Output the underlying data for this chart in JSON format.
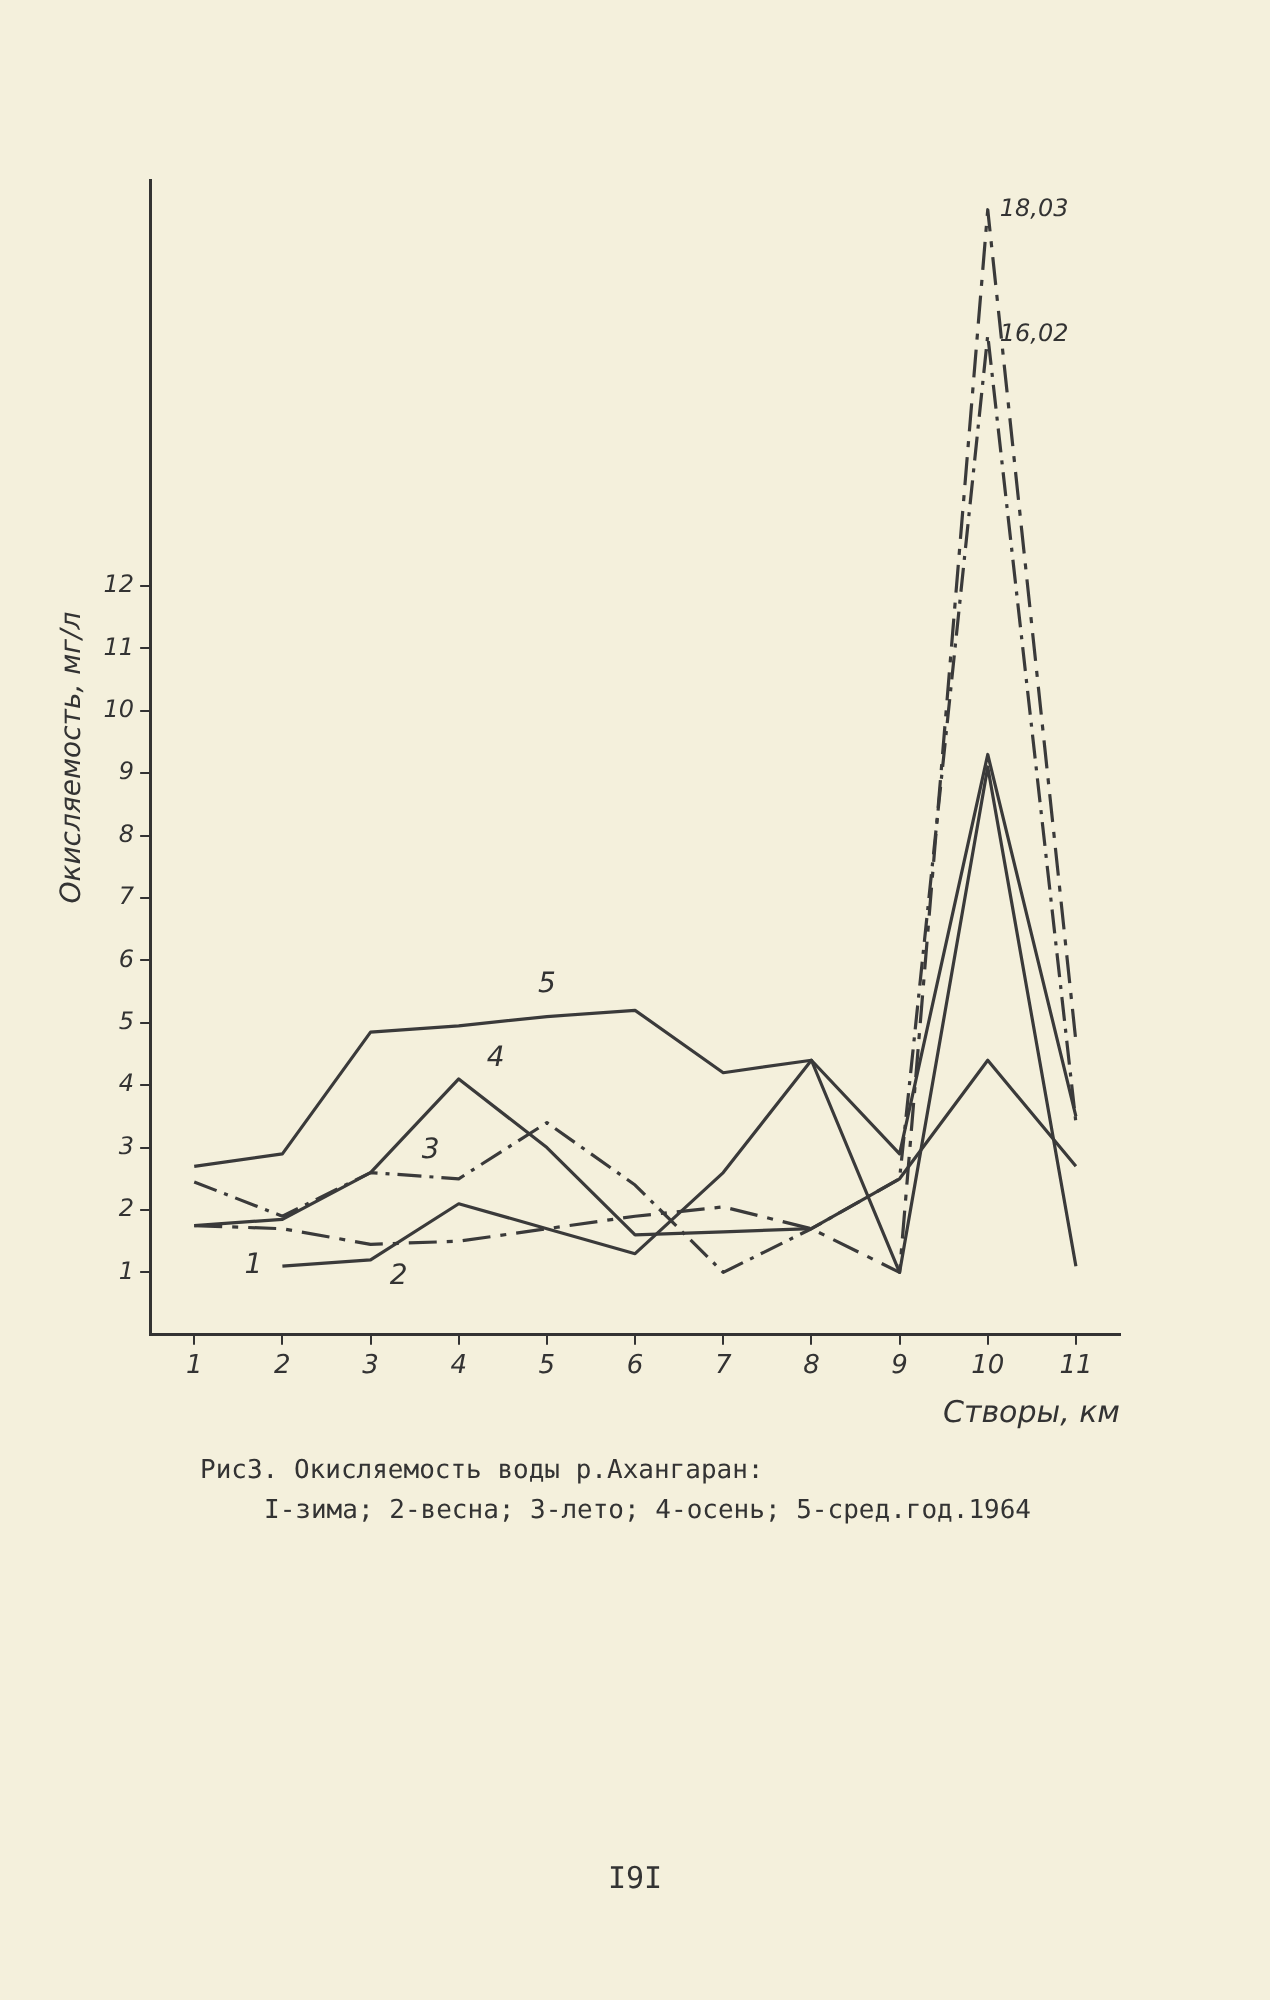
{
  "chart_data": {
    "type": "line",
    "title": "Рис3. Окисляемость воды р.Ахангаран:",
    "subtitle": "I-зима; 2-весна; 3-лето; 4-осень; 5-сред.год.1964",
    "xlabel": "Створы, км",
    "ylabel": "Окисляемость, мг/л",
    "categories": [
      "1",
      "2",
      "3",
      "4",
      "5",
      "6",
      "7",
      "8",
      "9",
      "10",
      "11"
    ],
    "ylim": [
      0,
      18.5
    ],
    "yticks": [
      1,
      2,
      3,
      4,
      5,
      6,
      7,
      8,
      9,
      10,
      11,
      12
    ],
    "series": [
      {
        "name": "1",
        "color": "#3a3a3a",
        "line_style": "solid",
        "values": [
          null,
          1.1,
          1.2,
          2.1,
          1.7,
          1.3,
          2.6,
          4.4,
          1.0,
          9.1,
          1.1
        ]
      },
      {
        "name": "2",
        "color": "#3a3a3a",
        "line_style": "dashed",
        "values": [
          1.75,
          1.7,
          1.45,
          1.5,
          1.7,
          1.9,
          2.05,
          1.7,
          1.0,
          18.03,
          4.7
        ]
      },
      {
        "name": "3",
        "color": "#3a3a3a",
        "line_style": "dashed",
        "values": [
          2.45,
          1.9,
          2.6,
          2.5,
          3.4,
          2.4,
          1.0,
          1.7,
          2.5,
          16.02,
          3.4
        ]
      },
      {
        "name": "4",
        "color": "#3a3a3a",
        "line_style": "solid",
        "values": [
          1.75,
          1.85,
          2.6,
          4.1,
          3.0,
          1.6,
          1.65,
          1.7,
          2.5,
          4.4,
          2.7
        ]
      },
      {
        "name": "5",
        "color": "#3a3a3a",
        "line_style": "solid",
        "values": [
          2.7,
          2.9,
          4.85,
          4.95,
          5.1,
          5.2,
          4.2,
          4.4,
          2.9,
          9.3,
          3.5
        ]
      }
    ],
    "annotations": [
      {
        "text": "18,03",
        "x": "10",
        "y": 18.03
      },
      {
        "text": "16,02",
        "x": "10",
        "y": 16.02
      },
      "I9I"
    ],
    "grid": false,
    "legend": false,
    "marker": "none"
  }
}
